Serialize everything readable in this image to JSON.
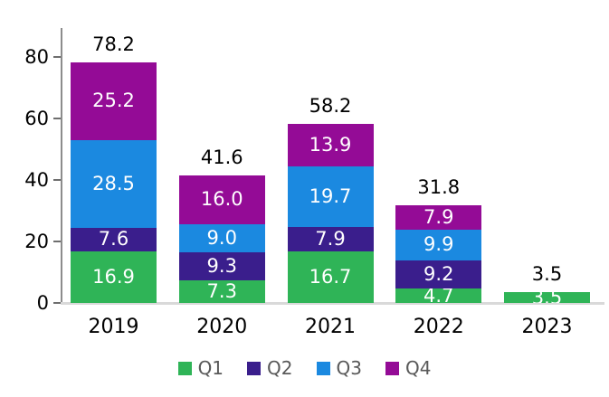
{
  "chart_data": {
    "type": "bar",
    "stacked": true,
    "title": "",
    "xlabel": "",
    "ylabel": "",
    "categories": [
      "2019",
      "2020",
      "2021",
      "2022",
      "2023"
    ],
    "series": [
      {
        "name": "Q1",
        "color": "#2fb457",
        "values": [
          16.9,
          7.3,
          16.7,
          4.7,
          3.5
        ]
      },
      {
        "name": "Q2",
        "color": "#3a1e8c",
        "values": [
          7.6,
          9.3,
          7.9,
          9.2,
          null
        ]
      },
      {
        "name": "Q3",
        "color": "#1b89e0",
        "values": [
          28.5,
          9.0,
          19.7,
          9.9,
          null
        ]
      },
      {
        "name": "Q4",
        "color": "#940b96",
        "values": [
          25.2,
          16.0,
          13.9,
          7.9,
          null
        ]
      }
    ],
    "totals": [
      78.2,
      41.6,
      58.2,
      31.8,
      3.5
    ],
    "y_axis": {
      "ticks": [
        0,
        20,
        40,
        60,
        80
      ],
      "min": 0,
      "max": 80,
      "grid": false
    },
    "legend": {
      "position": "bottom",
      "entries": [
        "Q1",
        "Q2",
        "Q3",
        "Q4"
      ]
    },
    "segment_label_color": "#ffffff",
    "total_label_color": "#000000",
    "axis_line_color": "#8c8c8c",
    "baseline_color": "#d9d9d9",
    "legend_text_color": "#595959"
  }
}
